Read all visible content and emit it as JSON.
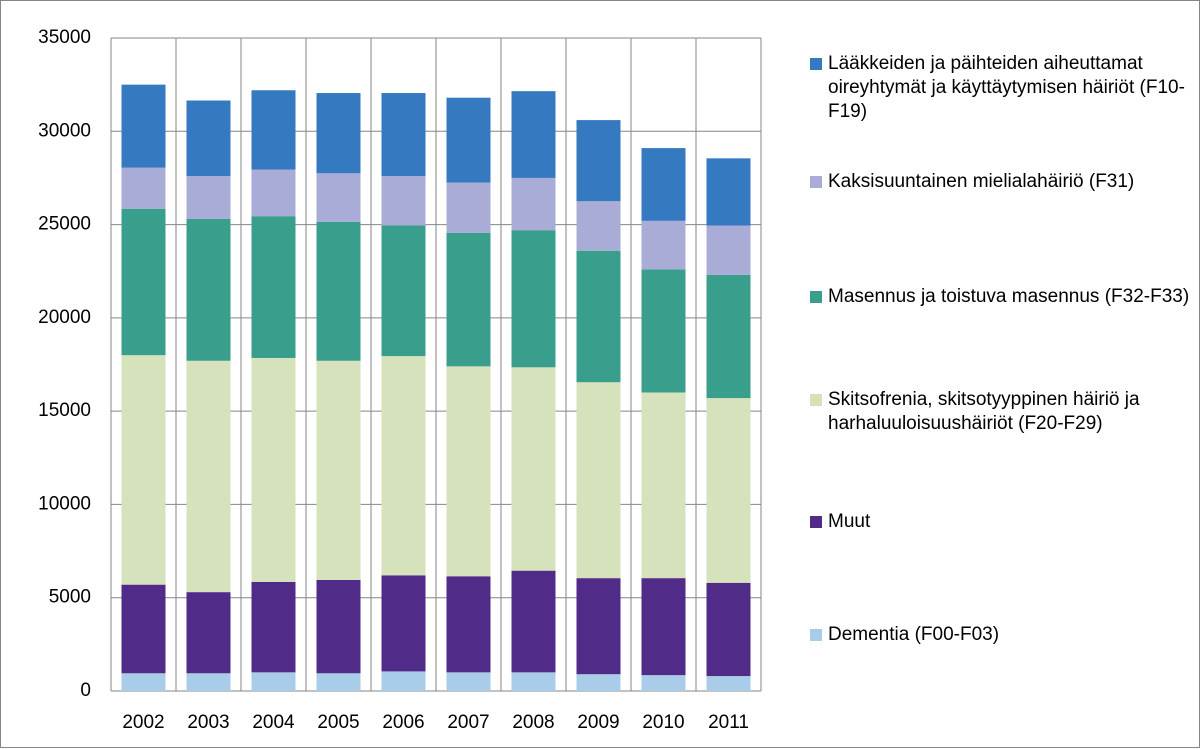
{
  "chart_data": {
    "type": "stacked_bar",
    "categories": [
      "2002",
      "2003",
      "2004",
      "2005",
      "2006",
      "2007",
      "2008",
      "2009",
      "2010",
      "2011"
    ],
    "series": [
      {
        "name": "Dementia (F00-F03)",
        "color": "#a9cde8",
        "values": [
          950,
          950,
          1000,
          950,
          1050,
          1000,
          1000,
          900,
          850,
          800
        ]
      },
      {
        "name": "Muut",
        "color": "#512b88",
        "values": [
          4750,
          4350,
          4850,
          5000,
          5150,
          5150,
          5450,
          5150,
          5200,
          5000
        ]
      },
      {
        "name": "Skitsofrenia, skitsotyyppinen häiriö ja harhaluuloisuushäiriöt (F20-F29)",
        "color": "#d5e2bb",
        "values": [
          12300,
          12400,
          12000,
          11750,
          11750,
          11250,
          10900,
          10500,
          9950,
          9900
        ]
      },
      {
        "name": "Masennus ja toistuva masennus (F32-F33)",
        "color": "#3a9e8c",
        "values": [
          7850,
          7600,
          7600,
          7450,
          7000,
          7150,
          7350,
          7050,
          6600,
          6600
        ]
      },
      {
        "name": "Kaksisuuntainen mielialahäiriö (F31)",
        "color": "#a9acd6",
        "values": [
          2200,
          2300,
          2500,
          2600,
          2650,
          2700,
          2800,
          2650,
          2600,
          2650
        ]
      },
      {
        "name": "Lääkkeiden ja päihteiden aiheuttamat oireyhtymät ja käyttäytymisen häiriöt (F10-F19)",
        "color": "#3579c0",
        "values": [
          4450,
          4050,
          4250,
          4300,
          4450,
          4550,
          4650,
          4350,
          3900,
          3600
        ]
      }
    ],
    "ylim": [
      0,
      35000
    ],
    "yticks": [
      0,
      5000,
      10000,
      15000,
      20000,
      25000,
      30000,
      35000
    ],
    "grid": true,
    "legend": "right"
  }
}
